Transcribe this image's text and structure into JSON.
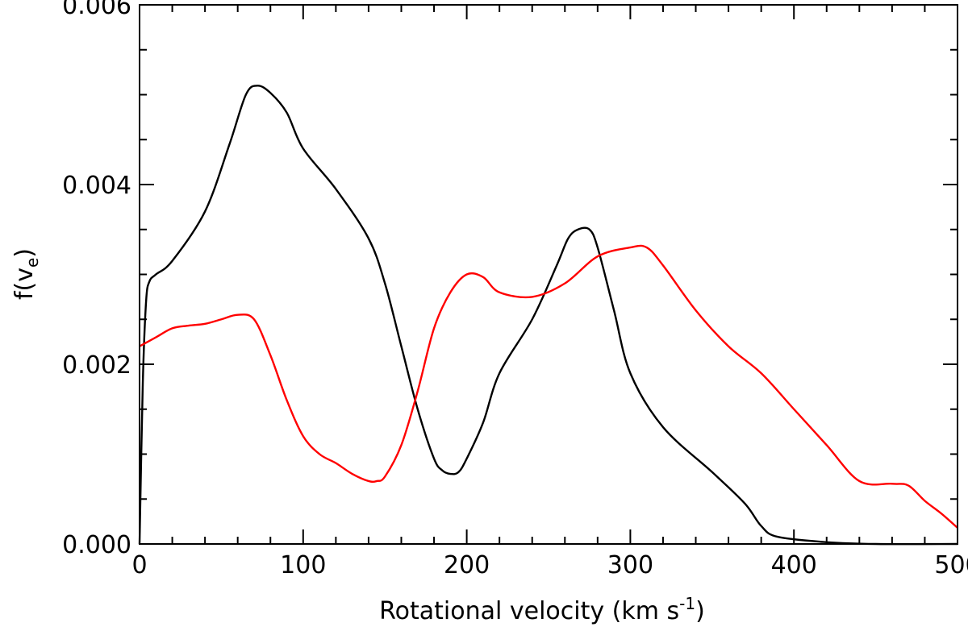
{
  "chart_data": {
    "type": "line",
    "title": "",
    "xlabel": "Rotational velocity (km s",
    "xlabel_sup": "-1",
    "xlabel_close": ")",
    "ylabel": "f(v",
    "ylabel_sub": "e",
    "ylabel_close": ")",
    "xlim": [
      0,
      500
    ],
    "ylim": [
      0,
      0.006
    ],
    "x_ticks": [
      0,
      100,
      200,
      300,
      400,
      500
    ],
    "x_tick_labels": [
      "0",
      "100",
      "200",
      "300",
      "400",
      "500"
    ],
    "y_ticks": [
      0,
      0.002,
      0.004,
      0.006
    ],
    "y_tick_labels": [
      "0.000",
      "0.002",
      "0.004",
      "0.006"
    ],
    "x_minor_step": 20,
    "y_minor_step": 0.0005,
    "grid": false,
    "series": [
      {
        "name": "black",
        "color": "#000000",
        "x": [
          0,
          2,
          4,
          6,
          10,
          20,
          40,
          55,
          65,
          72,
          80,
          90,
          100,
          120,
          140,
          150,
          160,
          170,
          180,
          185,
          190,
          195,
          200,
          210,
          220,
          240,
          255,
          262,
          268,
          275,
          280,
          290,
          300,
          320,
          350,
          370,
          380,
          390,
          420,
          450,
          500
        ],
        "y": [
          0.0,
          0.0018,
          0.0027,
          0.00292,
          0.003,
          0.00315,
          0.0037,
          0.00445,
          0.005,
          0.0051,
          0.00502,
          0.0048,
          0.0044,
          0.00395,
          0.0034,
          0.0029,
          0.0022,
          0.0015,
          0.00095,
          0.00082,
          0.00078,
          0.0008,
          0.00095,
          0.00135,
          0.0019,
          0.0025,
          0.0031,
          0.0034,
          0.0035,
          0.0035,
          0.0033,
          0.0026,
          0.0019,
          0.0013,
          0.0008,
          0.00045,
          0.0002,
          8e-05,
          2e-05,
          0.0,
          0.0
        ]
      },
      {
        "name": "red",
        "color": "#ff0000",
        "x": [
          0,
          10,
          20,
          30,
          40,
          50,
          60,
          70,
          80,
          90,
          100,
          110,
          120,
          130,
          140,
          145,
          150,
          160,
          170,
          180,
          190,
          200,
          210,
          220,
          240,
          260,
          280,
          300,
          310,
          320,
          340,
          360,
          380,
          400,
          420,
          440,
          460,
          470,
          480,
          490,
          500
        ],
        "y": [
          0.0022,
          0.0023,
          0.0024,
          0.00243,
          0.00245,
          0.0025,
          0.00255,
          0.0025,
          0.0021,
          0.0016,
          0.0012,
          0.001,
          0.0009,
          0.00078,
          0.0007,
          0.0007,
          0.00075,
          0.0011,
          0.0017,
          0.0024,
          0.0028,
          0.003,
          0.00297,
          0.0028,
          0.00275,
          0.0029,
          0.0032,
          0.0033,
          0.0033,
          0.0031,
          0.0026,
          0.0022,
          0.0019,
          0.0015,
          0.0011,
          0.0007,
          0.00067,
          0.00065,
          0.00048,
          0.00034,
          0.00018
        ]
      }
    ]
  }
}
